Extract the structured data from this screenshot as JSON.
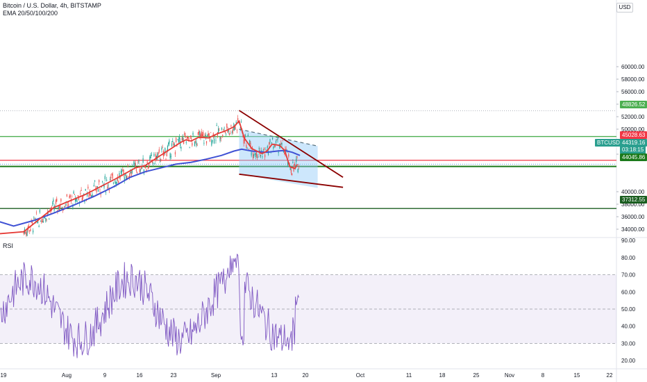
{
  "header": {
    "title": "Bitcoin / U.S. Dollar, 4h, BITSTAMP",
    "indicator": "EMA 20/50/100/200",
    "currency": "USD"
  },
  "rsi": {
    "label": "RSI"
  },
  "price_tags": {
    "line_top": "48826.52",
    "red": "45028.63",
    "current": "44319.16",
    "countdown": "03:18:15",
    "green": "44045.86",
    "line_bottom": "37312.55",
    "symbol": "BTCUSD"
  },
  "chart_data": {
    "type": "line",
    "price_axis": {
      "range": [
        32000,
        62000
      ],
      "ticks": [
        "60000.00",
        "58000.00",
        "56000.00",
        "54000.00",
        "52000.00",
        "50000.00",
        "48000.00",
        "46000.00",
        "40000.00",
        "38000.00",
        "36000.00",
        "34000.00"
      ]
    },
    "rsi_axis": {
      "range": [
        15,
        90
      ],
      "ticks": [
        "90.00",
        "80.00",
        "70.00",
        "60.00",
        "50.00",
        "40.00",
        "30.00",
        "20.00"
      ],
      "bands": [
        30,
        70
      ]
    },
    "x_ticks": [
      "19",
      "Aug",
      "9",
      "16",
      "23",
      "Sep",
      "13",
      "20",
      "Oct",
      "11",
      "18",
      "25",
      "Nov",
      "8",
      "15",
      "22"
    ],
    "horizontal_levels": [
      {
        "price": 48826.52,
        "color": "#4caf50"
      },
      {
        "price": 45028.63,
        "color": "#f23645"
      },
      {
        "price": 44045.86,
        "color": "#1b7a1b"
      },
      {
        "price": 37312.55,
        "color": "#1b5e20"
      }
    ],
    "ema_fast": [
      [
        -2,
        33200
      ],
      [
        4,
        33600
      ],
      [
        10,
        37500
      ],
      [
        16,
        39500
      ],
      [
        22,
        42000
      ],
      [
        26,
        43800
      ],
      [
        28,
        44200
      ],
      [
        31,
        45800
      ],
      [
        35,
        47900
      ],
      [
        36,
        48300
      ],
      [
        37,
        48100
      ],
      [
        38.5,
        48700
      ],
      [
        40.5,
        48600
      ],
      [
        42,
        49200
      ],
      [
        44,
        49800
      ],
      [
        45.5,
        50400
      ],
      [
        46.5,
        51300
      ],
      [
        47.5,
        48600
      ],
      [
        49,
        46900
      ],
      [
        51,
        46100
      ],
      [
        52,
        46500
      ],
      [
        53,
        47600
      ],
      [
        54.5,
        47400
      ],
      [
        55.5,
        46600
      ],
      [
        56.5,
        44000
      ],
      [
        57.5,
        43700
      ],
      [
        58,
        44400
      ]
    ],
    "ema_slow": [
      [
        -2,
        35500
      ],
      [
        2,
        34500
      ],
      [
        6,
        35400
      ],
      [
        10,
        36600
      ],
      [
        14,
        37900
      ],
      [
        18,
        39300
      ],
      [
        22,
        40900
      ],
      [
        25,
        42300
      ],
      [
        28,
        43200
      ],
      [
        31,
        43800
      ],
      [
        34,
        44400
      ],
      [
        37,
        44700
      ],
      [
        40,
        45200
      ],
      [
        43,
        45800
      ],
      [
        45.5,
        46500
      ],
      [
        47,
        46800
      ],
      [
        49,
        46500
      ],
      [
        52,
        46300
      ],
      [
        54,
        46500
      ],
      [
        55.5,
        46600
      ],
      [
        57,
        46300
      ],
      [
        58.5,
        45800
      ]
    ],
    "wedge_upper": [
      [
        46.5,
        53000
      ],
      [
        67,
        42300
      ]
    ],
    "wedge_lower": [
      [
        46.5,
        42800
      ],
      [
        67,
        40700
      ]
    ],
    "projection_dashed": [
      [
        46.5,
        50000
      ],
      [
        62,
        47300
      ]
    ],
    "projection_box": {
      "x": [
        46.5,
        62
      ],
      "price_low": 40600
    }
  }
}
